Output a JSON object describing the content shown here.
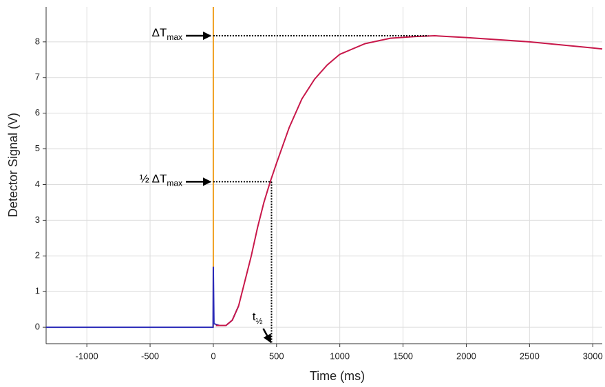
{
  "chart_data": {
    "type": "line",
    "x_label": "Time (ms)",
    "y_label": "Detector Signal (V)",
    "xlim": [
      -1322,
      3075
    ],
    "ylim": [
      -0.46,
      8.98
    ],
    "xticks": [
      -1000,
      -500,
      0,
      500,
      1000,
      1500,
      2000,
      2500,
      3000
    ],
    "yticks": [
      0,
      1,
      2,
      3,
      4,
      5,
      6,
      7,
      8
    ],
    "grid": true,
    "series": [
      {
        "color": "#f0a020",
        "x": [
          0,
          0
        ],
        "values": [
          0,
          8.98
        ]
      },
      {
        "color": "#2a2ab8",
        "x": [
          -1322,
          -1000,
          -500,
          -2,
          0,
          5,
          50,
          100,
          150,
          200
        ],
        "values": [
          0,
          0,
          0,
          0,
          1.7,
          0.1,
          0.05,
          0.05,
          0.2,
          0.6
        ]
      },
      {
        "color": "#c8184a",
        "x": [
          20,
          100,
          150,
          200,
          250,
          300,
          350,
          400,
          450,
          500,
          600,
          700,
          800,
          900,
          1000,
          1200,
          1400,
          1600,
          1750,
          2000,
          2500,
          3000,
          3075
        ],
        "values": [
          0.05,
          0.05,
          0.2,
          0.6,
          1.3,
          2.0,
          2.8,
          3.5,
          4.08,
          4.6,
          5.6,
          6.4,
          6.95,
          7.35,
          7.65,
          7.95,
          8.1,
          8.15,
          8.17,
          8.12,
          8.0,
          7.83,
          7.8
        ]
      }
    ],
    "annotations": [
      {
        "text": "ΔT",
        "sub": "max",
        "y": 8.17,
        "x_to": 1700
      },
      {
        "text": "½ ΔT",
        "sub": "max",
        "y": 4.08,
        "x_to": 460
      },
      {
        "text": "t",
        "sub": "½",
        "x": 460
      }
    ]
  }
}
